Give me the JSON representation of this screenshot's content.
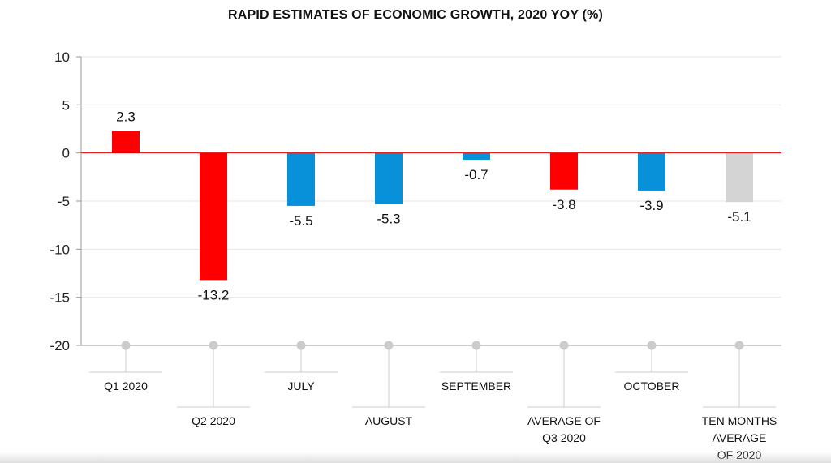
{
  "chart_data": {
    "type": "bar",
    "title": "RAPID ESTIMATES OF ECONOMIC GROWTH, 2020 YOY  (%)",
    "xlabel": "",
    "ylabel": "",
    "ylim": [
      -20,
      10
    ],
    "yticks": [
      10,
      5,
      0,
      -5,
      -10,
      -15,
      -20
    ],
    "grid": true,
    "categories": [
      [
        "Q1 2020"
      ],
      [
        "Q2 2020"
      ],
      [
        "JULY"
      ],
      [
        "AUGUST"
      ],
      [
        "SEPTEMBER"
      ],
      [
        "AVERAGE OF",
        "Q3 2020"
      ],
      [
        "OCTOBER"
      ],
      [
        "TEN MONTHS",
        "AVERAGE",
        "OF 2020"
      ]
    ],
    "values": [
      2.3,
      -13.2,
      -5.5,
      -5.3,
      -0.7,
      -3.8,
      -3.9,
      -5.1
    ],
    "data_labels": [
      "2.3",
      "-13.2",
      "-5.5",
      "-5.3",
      "-0.7",
      "-3.8",
      "-3.9",
      "-5.1"
    ],
    "bar_colors": [
      "#ff0000",
      "#ff0000",
      "#0891d8",
      "#0891d8",
      "#0891d8",
      "#ff0000",
      "#0891d8",
      "#d4d4d4"
    ],
    "label_rows": [
      "upper",
      "lower",
      "upper",
      "lower",
      "upper",
      "lower",
      "upper",
      "lower"
    ],
    "colors": {
      "zero_line": "#e00000",
      "grid": "#e6e6e6",
      "axis": "#999999",
      "callout": "#cccccc"
    }
  }
}
